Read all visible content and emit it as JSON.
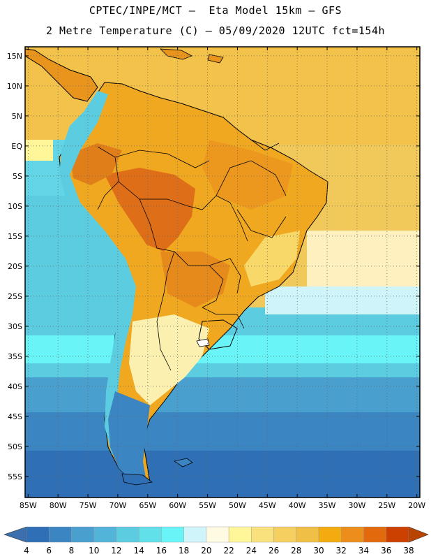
{
  "header": {
    "title_line1": "CPTEC/INPE/MCT –  Eta Model 15km – GFS",
    "title_line2": "2 Metre Temperature (C) – 05/09/2020 12UTC fct=154h"
  },
  "map": {
    "lat_labels": [
      "15N",
      "10N",
      "5N",
      "EQ",
      "5S",
      "10S",
      "15S",
      "20S",
      "25S",
      "30S",
      "35S",
      "40S",
      "45S",
      "50S",
      "55S"
    ],
    "lat_values": [
      15,
      10,
      5,
      0,
      -5,
      -10,
      -15,
      -20,
      -25,
      -30,
      -35,
      -40,
      -45,
      -50,
      -55
    ],
    "lon_labels": [
      "85W",
      "80W",
      "75W",
      "70W",
      "65W",
      "60W",
      "55W",
      "50W",
      "45W",
      "40W",
      "35W",
      "30W",
      "25W",
      "20W"
    ],
    "lon_values": [
      -85,
      -80,
      -75,
      -70,
      -65,
      -60,
      -55,
      -50,
      -45,
      -40,
      -35,
      -30,
      -25,
      -20
    ],
    "extent": {
      "lon_min": -85.5,
      "lon_max": -19.5,
      "lat_min": -58.5,
      "lat_max": 16.5
    },
    "ocean_warm_color": "#f3d461",
    "ocean_cool_color": "#3ec0dc",
    "land_hot_color": "#e2891c",
    "gridline": "dotted"
  },
  "colorbar": {
    "labels": [
      "4",
      "6",
      "8",
      "10",
      "12",
      "14",
      "16",
      "18",
      "20",
      "22",
      "24",
      "26",
      "28",
      "30",
      "32",
      "34",
      "36",
      "38"
    ],
    "colors": [
      "#2f6fb5",
      "#3b86c2",
      "#49a0cf",
      "#52b4d9",
      "#5ccde0",
      "#62e0ea",
      "#69f5f8",
      "#cff5fb",
      "#fffbe2",
      "#fff69a",
      "#f9e27d",
      "#f5cf5f",
      "#f0bf45",
      "#f3ab0f",
      "#ec8d1c",
      "#e3690d",
      "#cd4100"
    ],
    "low_arrow_color": "#3b6fad",
    "high_arrow_color": "#b94300"
  }
}
